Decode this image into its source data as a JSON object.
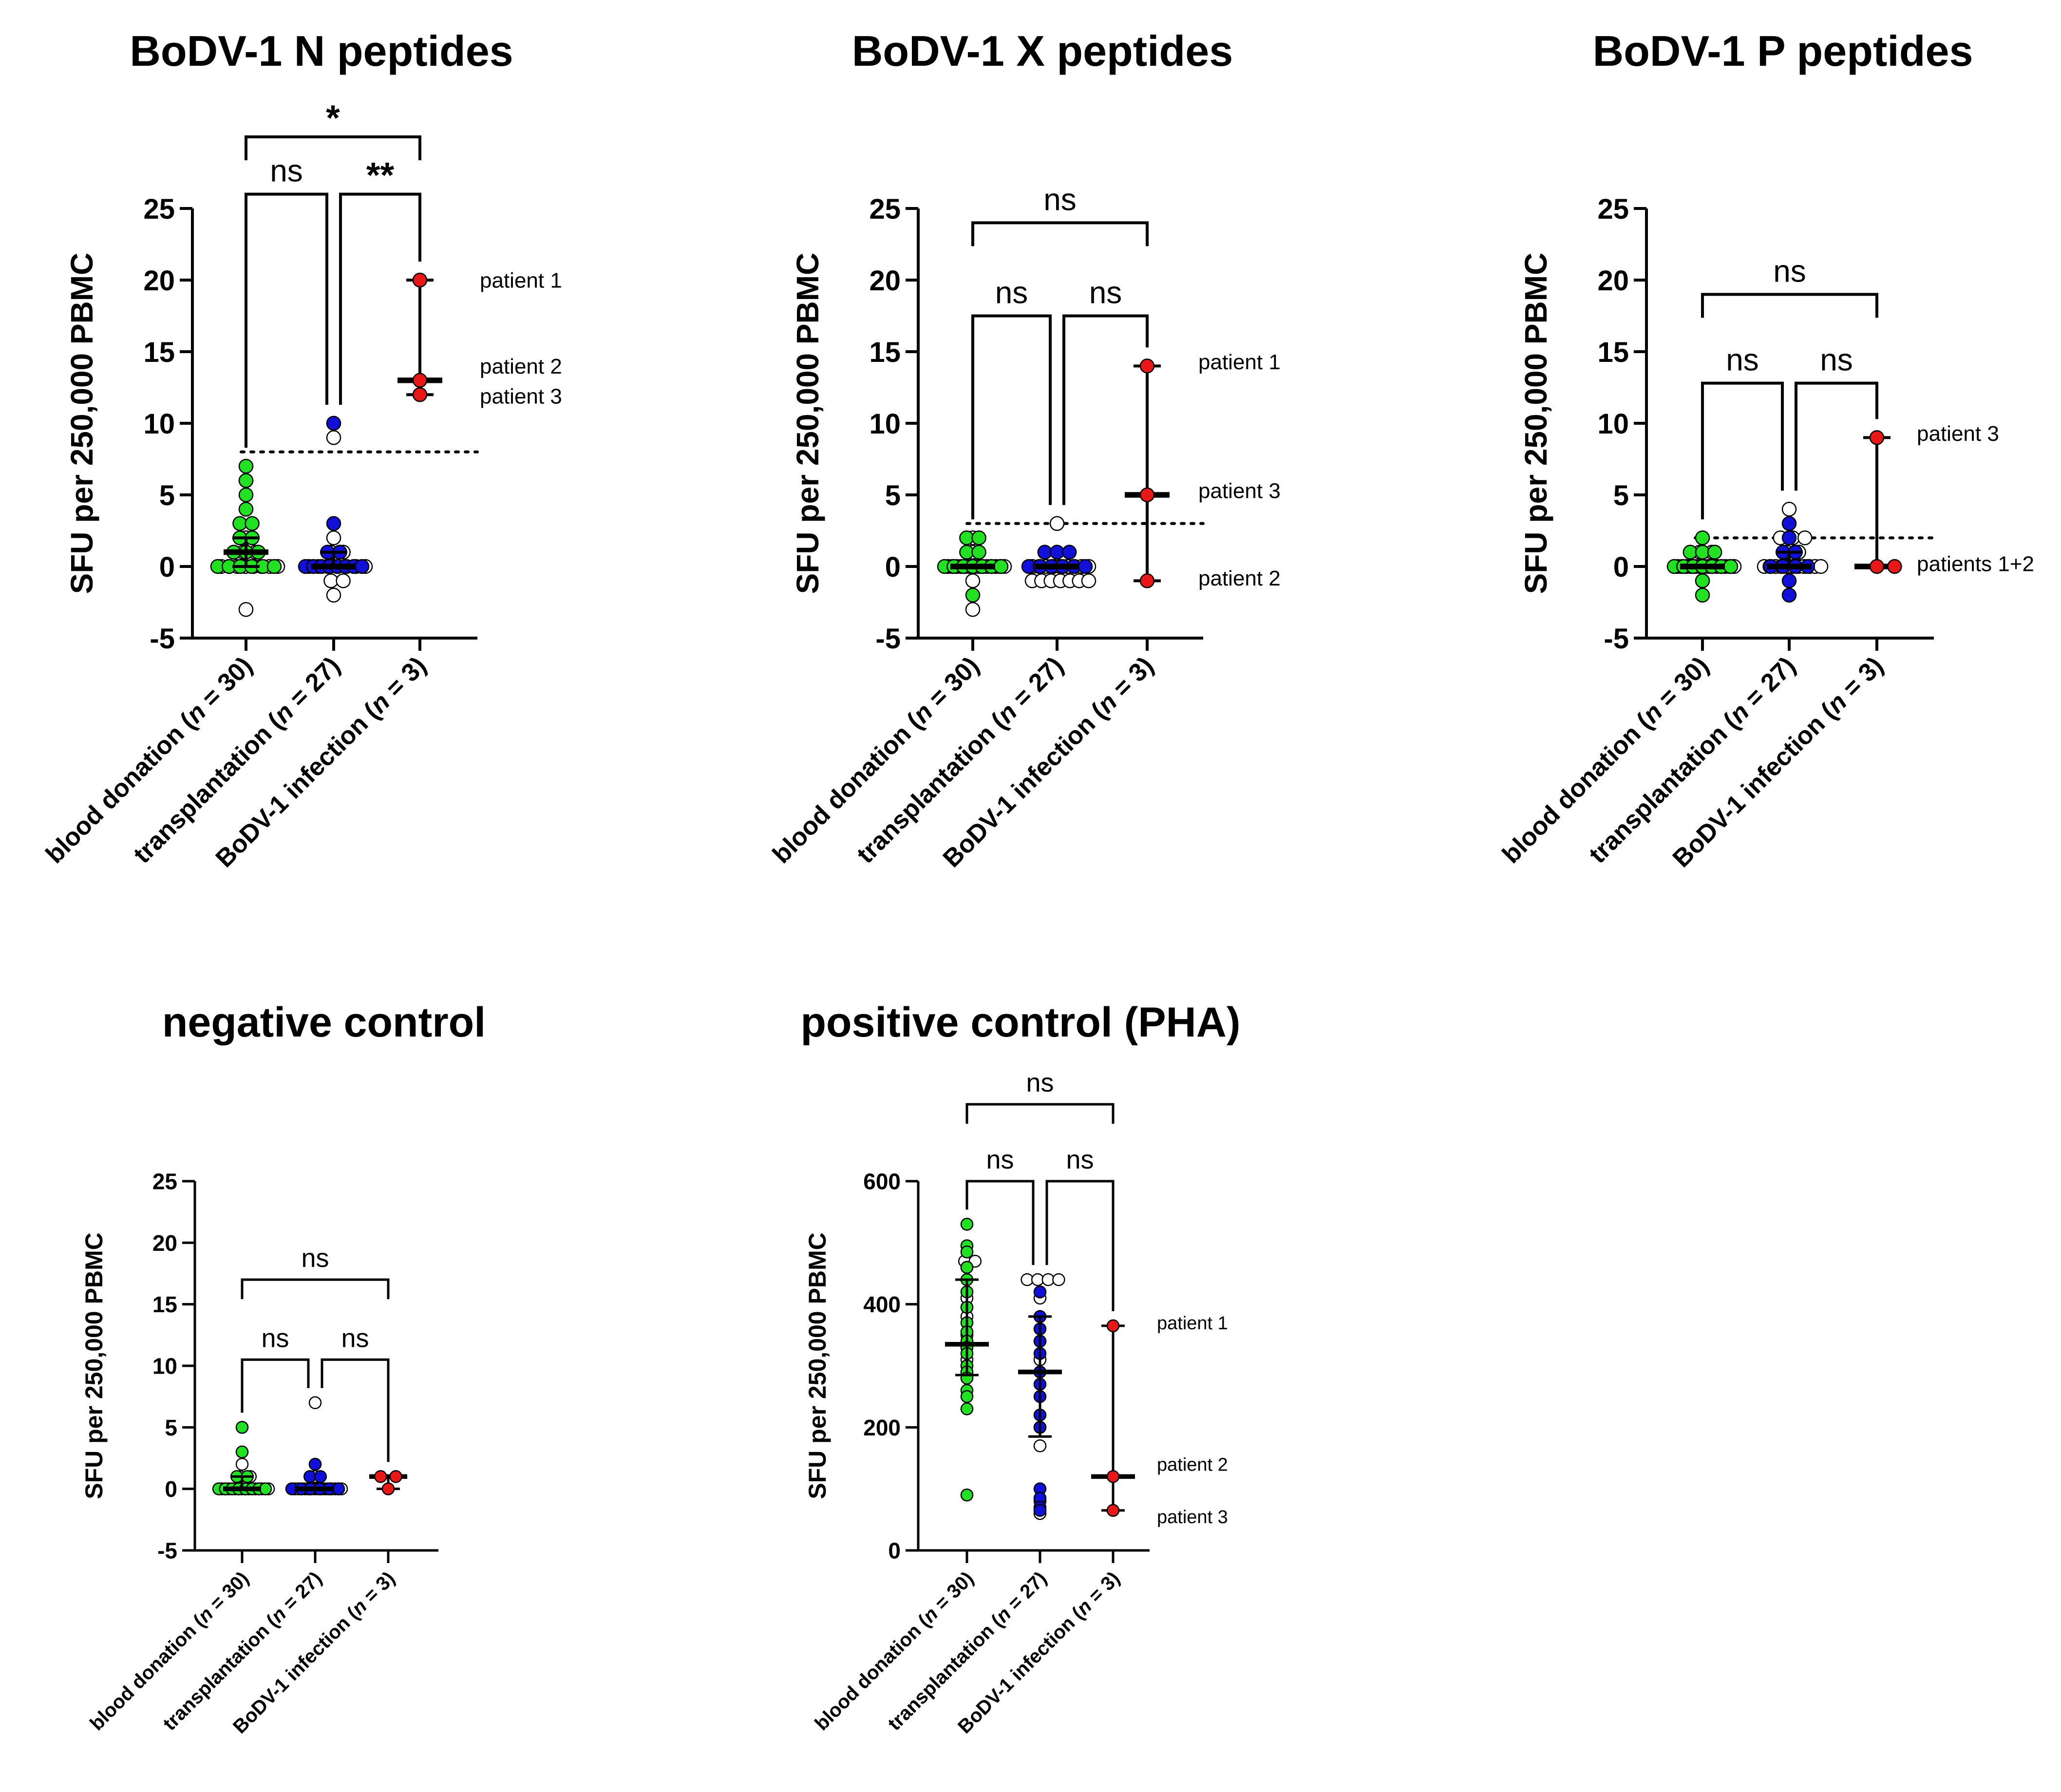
{
  "colors": {
    "blood_donation": "#22e022",
    "blood_donation_neg": "#ffffff",
    "transplantation": "#1010d8",
    "transplantation_neg": "#ffffff",
    "bodv_infection": "#e81818",
    "axis": "#000000"
  },
  "chart_data": [
    {
      "type": "scatter",
      "title": "BoDV-1 N peptides",
      "ylabel": "SFU per 250,000 PBMC",
      "ylim": [
        -5,
        25
      ],
      "yticks": [
        -5,
        0,
        5,
        10,
        15,
        20,
        25
      ],
      "categories": [
        {
          "label": "blood donation (",
          "n": "n",
          "rest": " = 30)"
        },
        {
          "label": "transplantation (",
          "n": "n",
          "rest": " = 27)"
        },
        {
          "label": "BoDV-1 infection (",
          "n": "n",
          "rest": " = 3)"
        }
      ],
      "cutoff": 8,
      "series": [
        {
          "name": "blood donation",
          "median": 1,
          "q1": 0,
          "q3": 2,
          "positives": [
            7,
            6,
            5,
            4,
            3,
            3,
            2,
            2,
            1,
            1,
            1,
            0,
            0,
            0,
            0,
            0,
            0
          ],
          "negatives": [
            6,
            2,
            1,
            1,
            0,
            0,
            0,
            0,
            0,
            0,
            0,
            0,
            -3
          ]
        },
        {
          "name": "transplantation",
          "median": 0,
          "q1": 0,
          "q3": 1,
          "positives": [
            10,
            3,
            1,
            1,
            0,
            0,
            0,
            0,
            0,
            0,
            0,
            0
          ],
          "negatives": [
            10,
            9,
            2,
            1,
            1,
            0,
            0,
            0,
            0,
            0,
            0,
            0,
            -1,
            -1,
            -2
          ]
        },
        {
          "name": "BoDV-1 infection",
          "median": 13,
          "q1": 12,
          "q3": 20,
          "positives": [
            20,
            13,
            12
          ],
          "negatives": []
        }
      ],
      "patient_labels": [
        {
          "text": "patient 1",
          "value": 20
        },
        {
          "text": "patient 2",
          "value": 14
        },
        {
          "text": "patient 3",
          "value": 11.9
        }
      ],
      "significance": [
        {
          "from": 0,
          "to": 1,
          "label": "ns",
          "level": 26
        },
        {
          "from": 1,
          "to": 2,
          "label": "**",
          "level": 26
        },
        {
          "from": 0,
          "to": 2,
          "label": "*",
          "level": 30
        }
      ]
    },
    {
      "type": "scatter",
      "title": "BoDV-1 X peptides",
      "ylabel": "SFU per 250,000 PBMC",
      "ylim": [
        -5,
        25
      ],
      "yticks": [
        -5,
        0,
        5,
        10,
        15,
        20,
        25
      ],
      "categories": [
        {
          "label": "blood donation (",
          "n": "n",
          "rest": " = 30)"
        },
        {
          "label": "transplantation (",
          "n": "n",
          "rest": " = 27)"
        },
        {
          "label": "BoDV-1 infection (",
          "n": "n",
          "rest": " = 3)"
        }
      ],
      "cutoff": 3,
      "series": [
        {
          "name": "blood donation",
          "median": 0,
          "q1": 0,
          "q3": 0,
          "positives": [
            2,
            2,
            1,
            1,
            0,
            0,
            0,
            0,
            0,
            0,
            0,
            -2
          ],
          "negatives": [
            2,
            1,
            0,
            0,
            0,
            0,
            0,
            0,
            0,
            0,
            0,
            0,
            0,
            0,
            0,
            0,
            -1,
            -3
          ]
        },
        {
          "name": "transplantation",
          "median": 0,
          "q1": 0,
          "q3": 0,
          "positives": [
            1,
            1,
            1,
            0,
            0,
            0,
            0,
            0,
            0
          ],
          "negatives": [
            3,
            0,
            0,
            0,
            0,
            0,
            0,
            0,
            0,
            0,
            -1,
            -1,
            -1,
            -1,
            -1,
            -1,
            -1
          ]
        },
        {
          "name": "BoDV-1 infection",
          "median": 5,
          "q1": -1,
          "q3": 14,
          "positives": [
            14,
            5,
            -1
          ],
          "negatives": []
        }
      ],
      "patient_labels": [
        {
          "text": "patient 1",
          "value": 14.3
        },
        {
          "text": "patient 3",
          "value": 5.3
        },
        {
          "text": "patient 2",
          "value": -0.8
        }
      ],
      "significance": [
        {
          "from": 0,
          "to": 1,
          "label": "ns",
          "level": 17.5
        },
        {
          "from": 1,
          "to": 2,
          "label": "ns",
          "level": 17.5
        },
        {
          "from": 0,
          "to": 2,
          "label": "ns",
          "level": 24
        }
      ]
    },
    {
      "type": "scatter",
      "title": "BoDV-1 P peptides",
      "ylabel": "SFU per 250,000 PBMC",
      "ylim": [
        -5,
        25
      ],
      "yticks": [
        -5,
        0,
        5,
        10,
        15,
        20,
        25
      ],
      "categories": [
        {
          "label": "blood donation (",
          "n": "n",
          "rest": " = 30)"
        },
        {
          "label": "transplantation (",
          "n": "n",
          "rest": " = 27)"
        },
        {
          "label": "BoDV-1 infection (",
          "n": "n",
          "rest": " = 3)"
        }
      ],
      "cutoff": 2,
      "series": [
        {
          "name": "blood donation",
          "median": 0,
          "q1": 0,
          "q3": 0,
          "positives": [
            2,
            1,
            1,
            1,
            0,
            0,
            0,
            0,
            0,
            0,
            0,
            -1,
            -2
          ],
          "negatives": [
            1,
            1,
            0,
            0,
            0,
            0,
            0,
            0,
            0,
            0,
            0,
            0,
            0,
            0,
            0,
            0,
            -1
          ]
        },
        {
          "name": "transplantation",
          "median": 0,
          "q1": 0,
          "q3": 1,
          "positives": [
            3,
            2,
            1,
            1,
            0,
            0,
            0,
            0,
            -1,
            -2
          ],
          "negatives": [
            4,
            2,
            2,
            2,
            1,
            1,
            0,
            0,
            0,
            0,
            0,
            0,
            0,
            0,
            0,
            0,
            0
          ]
        },
        {
          "name": "BoDV-1 infection",
          "median": 0,
          "q1": 0,
          "q3": 9,
          "positives": [
            9,
            0,
            0
          ],
          "negatives": []
        }
      ],
      "patient_labels": [
        {
          "text": "patient 3",
          "value": 9.3
        },
        {
          "text": "patients 1+2",
          "value": 0.2
        }
      ],
      "significance": [
        {
          "from": 0,
          "to": 1,
          "label": "ns",
          "level": 12.8
        },
        {
          "from": 1,
          "to": 2,
          "label": "ns",
          "level": 12.8
        },
        {
          "from": 0,
          "to": 2,
          "label": "ns",
          "level": 19
        }
      ]
    },
    {
      "type": "scatter",
      "title": "negative control",
      "ylabel": "SFU per 250,000 PBMC",
      "ylim": [
        -5,
        25
      ],
      "yticks": [
        -5,
        0,
        5,
        10,
        15,
        20,
        25
      ],
      "categories": [
        {
          "label": "blood donation (",
          "n": "n",
          "rest": " = 30)"
        },
        {
          "label": "transplantation (",
          "n": "n",
          "rest": " = 27)"
        },
        {
          "label": "BoDV-1 infection (",
          "n": "n",
          "rest": " = 3)"
        }
      ],
      "series": [
        {
          "name": "blood donation",
          "median": 0,
          "q1": 0,
          "q3": 1,
          "positives": [
            5,
            3,
            1,
            1,
            0,
            0,
            0,
            0,
            0,
            0,
            0,
            0
          ],
          "negatives": [
            2,
            1,
            1,
            0,
            0,
            0,
            0,
            0,
            0,
            0,
            0,
            0,
            0,
            0,
            0,
            0,
            0,
            0
          ]
        },
        {
          "name": "transplantation",
          "median": 0,
          "q1": 0,
          "q3": 0,
          "positives": [
            2,
            1,
            1,
            0,
            0,
            0,
            0,
            0,
            0
          ],
          "negatives": [
            7,
            2,
            1,
            0,
            0,
            0,
            0,
            0,
            0,
            0,
            0,
            0,
            0,
            0,
            0,
            0,
            0,
            0
          ]
        },
        {
          "name": "BoDV-1 infection",
          "median": 1,
          "q1": 0,
          "q3": 1,
          "positives": [
            1,
            1,
            0
          ],
          "negatives": []
        }
      ],
      "patient_labels": [],
      "significance": [
        {
          "from": 0,
          "to": 1,
          "label": "ns",
          "level": 10.5
        },
        {
          "from": 1,
          "to": 2,
          "label": "ns",
          "level": 10.5
        },
        {
          "from": 0,
          "to": 2,
          "label": "ns",
          "level": 17
        }
      ]
    },
    {
      "type": "scatter",
      "title": "positive control (PHA)",
      "ylabel": "SFU per 250,000 PBMC",
      "ylim": [
        0,
        600
      ],
      "yticks": [
        0,
        200,
        400,
        600
      ],
      "categories": [
        {
          "label": "blood donation (",
          "n": "n",
          "rest": " = 30)"
        },
        {
          "label": "transplantation (",
          "n": "n",
          "rest": " = 27)"
        },
        {
          "label": "BoDV-1 infection (",
          "n": "n",
          "rest": " = 3)"
        }
      ],
      "series": [
        {
          "name": "blood donation",
          "median": 335,
          "q1": 285,
          "q3": 440,
          "positives": [
            530,
            495,
            485,
            460,
            440,
            420,
            395,
            370,
            355,
            340,
            330,
            320,
            300,
            290,
            280,
            260,
            250,
            230,
            90
          ],
          "negatives": [
            470,
            470,
            460,
            410,
            395,
            380,
            350,
            330,
            310,
            290,
            280
          ]
        },
        {
          "name": "transplantation",
          "median": 290,
          "q1": 185,
          "q3": 380,
          "positives": [
            420,
            380,
            360,
            340,
            320,
            290,
            270,
            250,
            220,
            200,
            100,
            85,
            70,
            65
          ],
          "negatives": [
            440,
            440,
            440,
            440,
            410,
            380,
            340,
            310,
            290,
            200,
            170,
            80,
            60
          ]
        },
        {
          "name": "BoDV-1 infection",
          "median": 120,
          "q1": 65,
          "q3": 365,
          "positives": [
            365,
            120,
            65
          ],
          "negatives": []
        }
      ],
      "patient_labels": [
        {
          "text": "patient 1",
          "value": 370
        },
        {
          "text": "patient 2",
          "value": 140
        },
        {
          "text": "patient 3",
          "value": 55
        }
      ],
      "significance": [
        {
          "from": 0,
          "to": 1,
          "label": "ns",
          "level": 600
        },
        {
          "from": 1,
          "to": 2,
          "label": "ns",
          "level": 600
        },
        {
          "from": 0,
          "to": 2,
          "label": "ns",
          "level": 725
        }
      ]
    }
  ]
}
